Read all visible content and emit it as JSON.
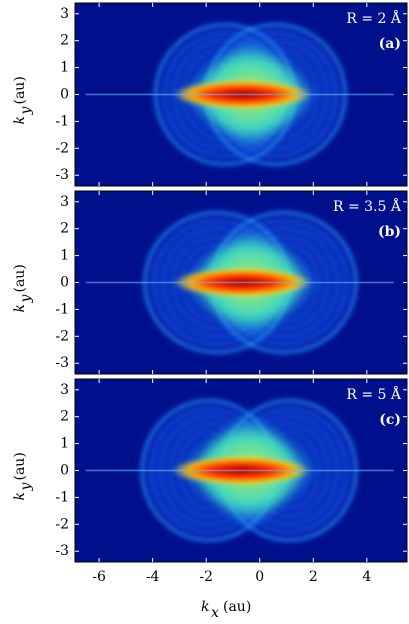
{
  "chart_data": [
    {
      "type": "heatmap",
      "annotation": "R = 2 Å",
      "panel_label": "(a)",
      "ylabel": "k",
      "ylabel_sub": "y",
      "ylabel_unit": "(au)",
      "xlim": [
        -6.9,
        5.5
      ],
      "ylim": [
        -3.4,
        3.4
      ],
      "xticks": [
        -6,
        -4,
        -2,
        0,
        2,
        4
      ],
      "yticks": [
        -3,
        -2,
        -1,
        0,
        1,
        2,
        3
      ]
    },
    {
      "type": "heatmap",
      "annotation": "R = 3.5 Å",
      "panel_label": "(b)",
      "ylabel": "k",
      "ylabel_sub": "y",
      "ylabel_unit": "(au)",
      "xlim": [
        -6.9,
        5.5
      ],
      "ylim": [
        -3.4,
        3.4
      ],
      "xticks": [
        -6,
        -4,
        -2,
        0,
        2,
        4
      ],
      "yticks": [
        -3,
        -2,
        -1,
        0,
        1,
        2,
        3
      ]
    },
    {
      "type": "heatmap",
      "annotation": "R = 5 Å",
      "panel_label": "(c)",
      "ylabel": "k",
      "ylabel_sub": "y",
      "ylabel_unit": "(au)",
      "xlabel": "k",
      "xlabel_sub": "x",
      "xlabel_unit": "(au)",
      "xlim": [
        -6.9,
        5.5
      ],
      "ylim": [
        -3.4,
        3.4
      ],
      "xticks": [
        -6,
        -4,
        -2,
        0,
        2,
        4
      ],
      "yticks": [
        -3,
        -2,
        -1,
        0,
        1,
        2,
        3
      ]
    }
  ]
}
